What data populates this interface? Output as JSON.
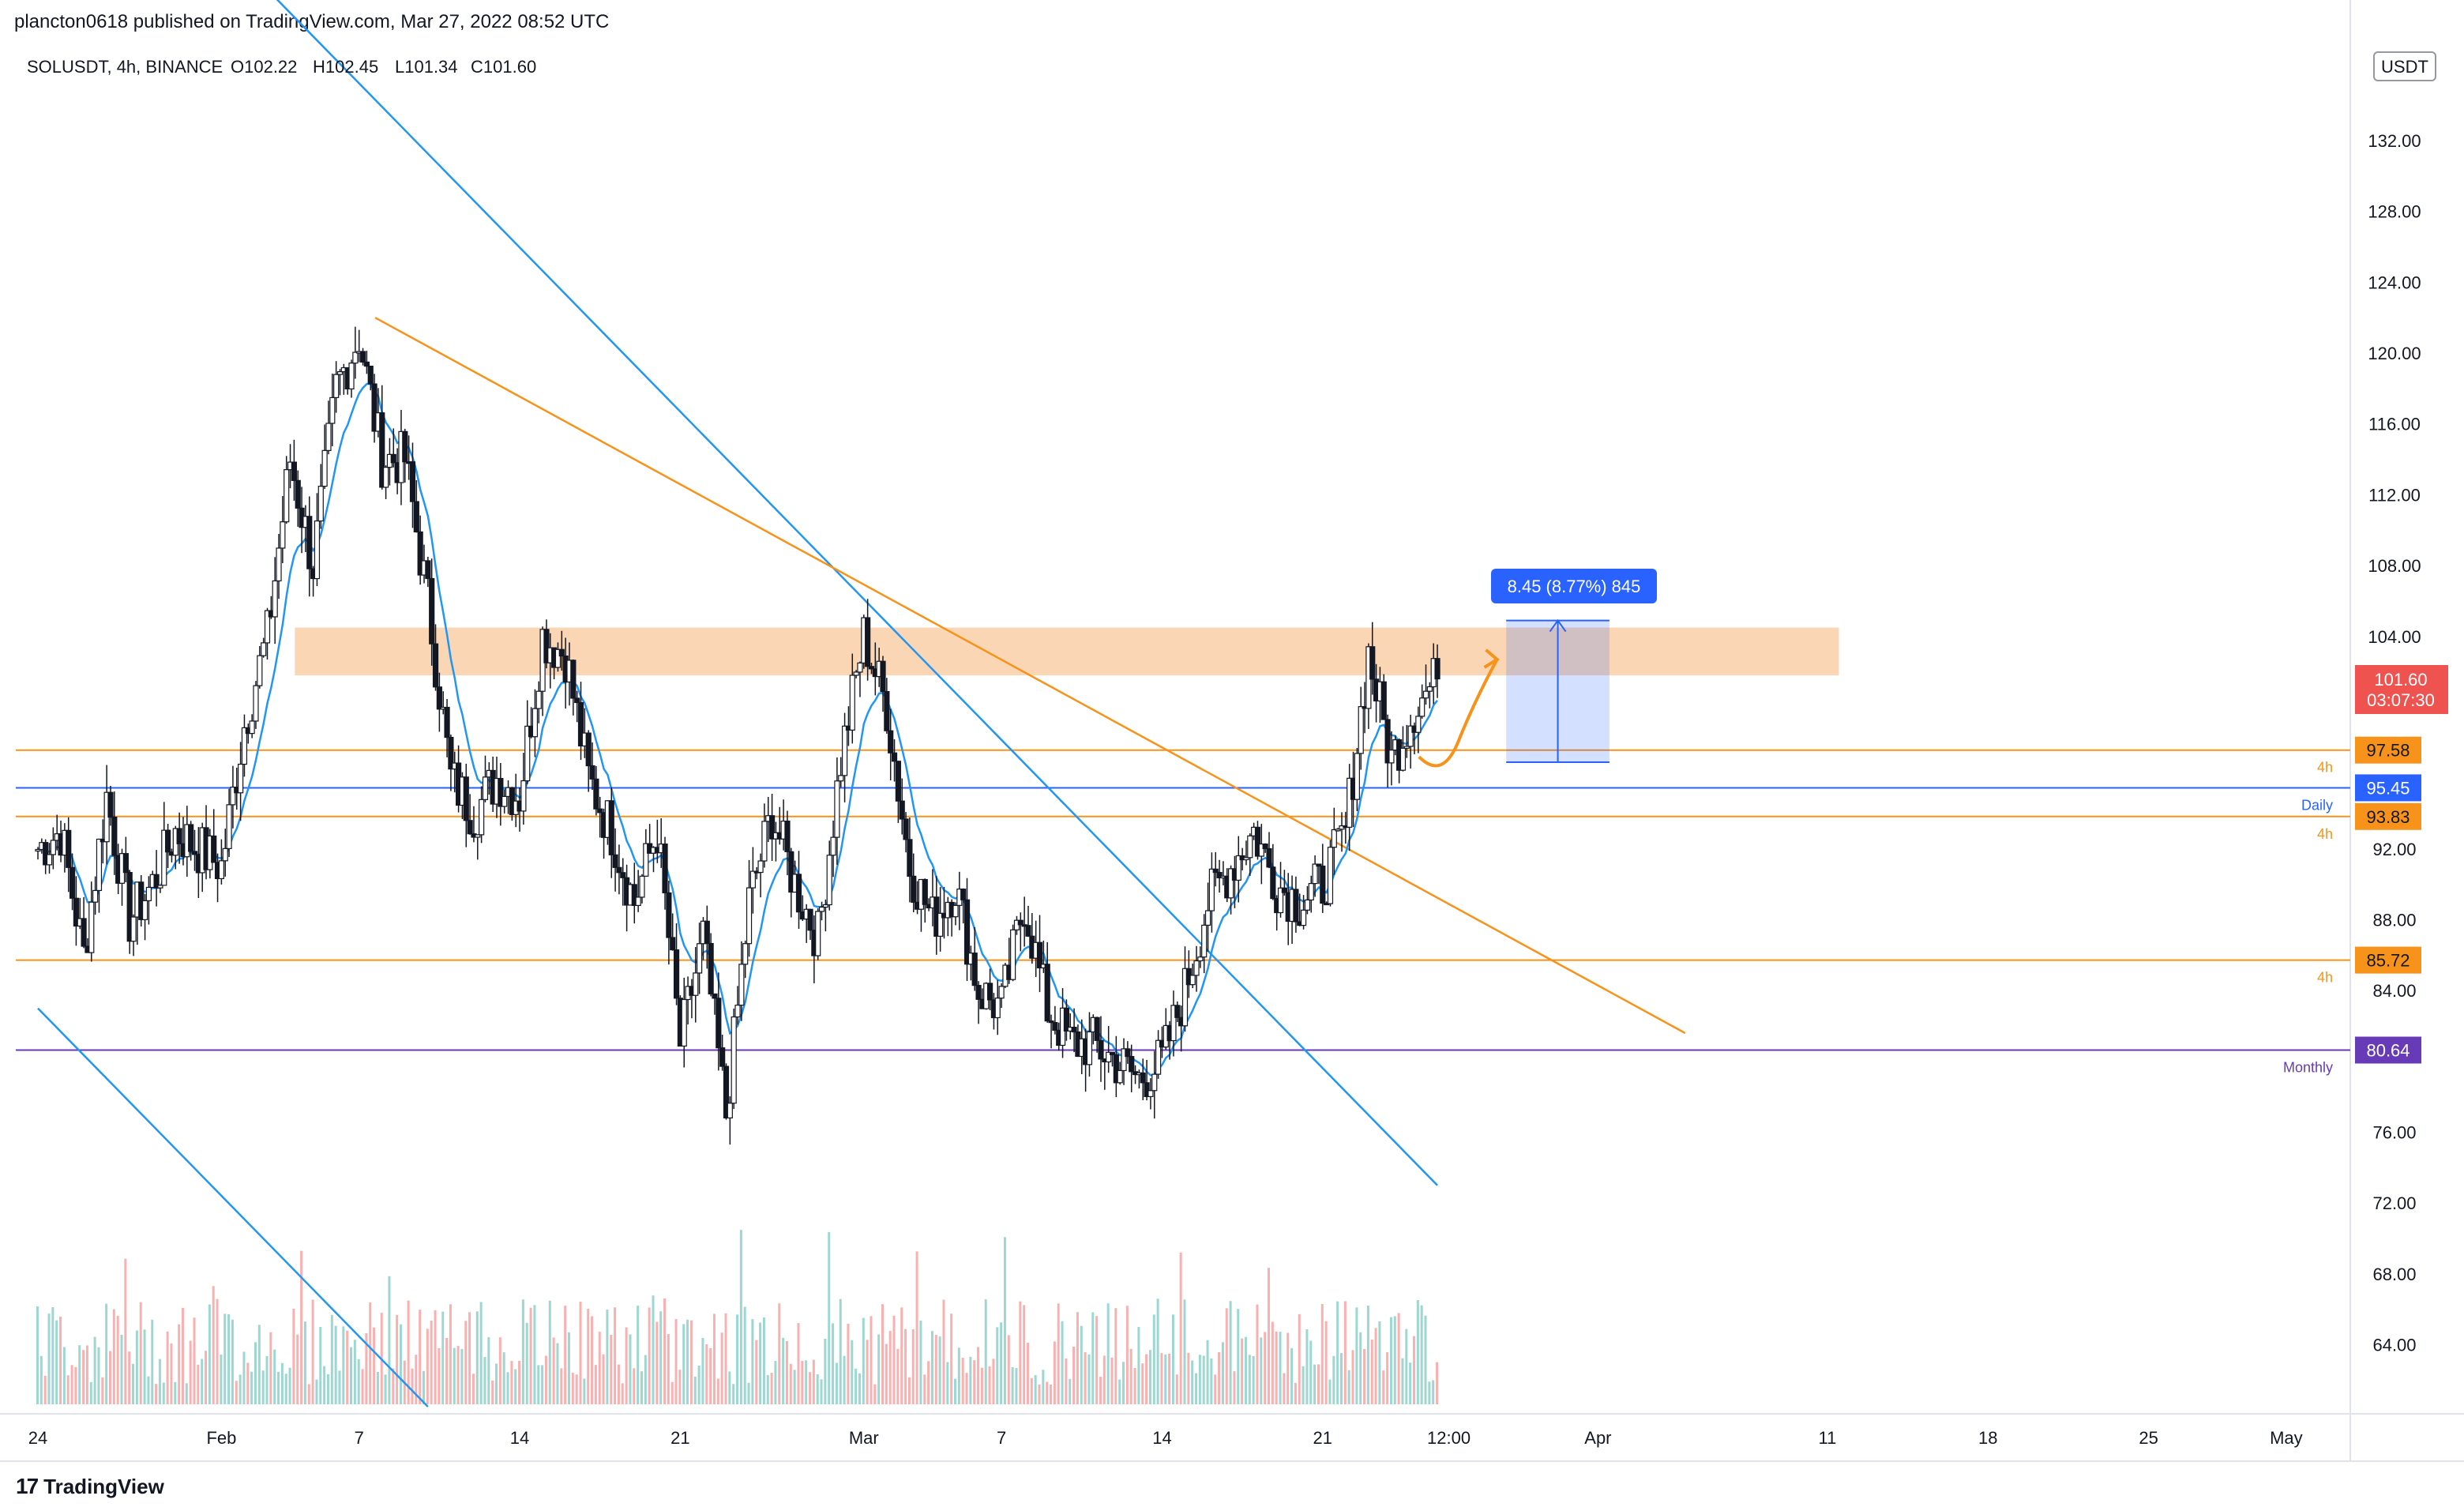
{
  "header": {
    "publisher": "plancton0618 published on TradingView.com, Mar 27, 2022 08:52 UTC"
  },
  "symbol_bar": {
    "symbol": "SOLUSDT, 4h, BINANCE",
    "open": "O102.22",
    "high": "H102.45",
    "low": "L101.34",
    "close": "C101.60"
  },
  "currency_badge": "USDT",
  "measure_label": "8.45 (8.77%) 845",
  "last_price": {
    "price": "101.60",
    "countdown": "03:07:30"
  },
  "footer": {
    "brand": "TradingView"
  },
  "colors": {
    "up_candle": "#ffffff",
    "down_candle": "#131722",
    "ma": "#2196f3",
    "trendline_blue": "#2196f3",
    "trendline_orange": "#f7931a",
    "level_orange": "#f7931a",
    "level_blue": "#2962ff",
    "level_purple": "#673ab7",
    "zone": "#f9c89b",
    "last_price": "#ef5350",
    "vol_up": "#26a69a",
    "vol_down": "#ef5350"
  },
  "chart_data": {
    "type": "candlestick",
    "symbol": "SOLUSDT",
    "timeframe": "4h",
    "exchange": "BINANCE",
    "y_ticks": [
      "132.00",
      "128.00",
      "124.00",
      "120.00",
      "116.00",
      "112.00",
      "108.00",
      "104.00",
      "92.00",
      "88.00",
      "84.00",
      "76.00",
      "72.00",
      "68.00",
      "64.00"
    ],
    "ylim": [
      61,
      136
    ],
    "x_ticks": [
      {
        "label": "24",
        "day": 0
      },
      {
        "label": "Feb",
        "day": 8
      },
      {
        "label": "7",
        "day": 14
      },
      {
        "label": "14",
        "day": 21
      },
      {
        "label": "21",
        "day": 28
      },
      {
        "label": "Mar",
        "day": 36
      },
      {
        "label": "7",
        "day": 42
      },
      {
        "label": "14",
        "day": 49
      },
      {
        "label": "21",
        "day": 56
      },
      {
        "label": "12:00",
        "day": 61.5
      },
      {
        "label": "Apr",
        "day": 68
      },
      {
        "label": "11",
        "day": 78
      },
      {
        "label": "18",
        "day": 85
      },
      {
        "label": "25",
        "day": 92
      },
      {
        "label": "May",
        "day": 98
      }
    ],
    "ohlc_keypoints": [
      [
        0,
        92
      ],
      [
        1,
        93
      ],
      [
        2,
        86
      ],
      [
        3,
        95
      ],
      [
        4,
        88
      ],
      [
        5,
        90
      ],
      [
        6,
        93
      ],
      [
        7,
        92
      ],
      [
        8,
        91
      ],
      [
        9,
        99
      ],
      [
        10,
        104
      ],
      [
        11,
        114
      ],
      [
        12,
        108
      ],
      [
        13,
        118
      ],
      [
        14,
        121
      ],
      [
        15,
        114
      ],
      [
        16,
        114
      ],
      [
        17,
        106
      ],
      [
        18,
        96
      ],
      [
        19,
        94
      ],
      [
        20,
        96
      ],
      [
        21,
        95
      ],
      [
        22,
        104
      ],
      [
        23,
        103
      ],
      [
        24,
        96
      ],
      [
        25,
        93
      ],
      [
        26,
        89
      ],
      [
        27,
        93
      ],
      [
        28,
        81
      ],
      [
        29,
        87
      ],
      [
        30,
        77
      ],
      [
        31,
        89
      ],
      [
        32,
        94
      ],
      [
        33,
        90
      ],
      [
        34,
        87
      ],
      [
        35,
        97
      ],
      [
        36,
        104
      ],
      [
        37,
        100
      ],
      [
        38,
        91
      ],
      [
        39,
        88
      ],
      [
        40,
        90
      ],
      [
        41,
        84
      ],
      [
        42,
        83
      ],
      [
        43,
        89
      ],
      [
        44,
        83
      ],
      [
        45,
        81
      ],
      [
        46,
        81
      ],
      [
        47,
        80
      ],
      [
        48,
        79
      ],
      [
        49,
        80
      ],
      [
        50,
        84
      ],
      [
        51,
        89
      ],
      [
        52,
        91
      ],
      [
        53,
        93
      ],
      [
        54,
        90
      ],
      [
        55,
        89
      ],
      [
        56,
        90
      ],
      [
        57,
        93
      ],
      [
        58,
        103
      ],
      [
        59,
        97
      ],
      [
        60,
        100
      ],
      [
        61,
        101.6
      ]
    ],
    "last": {
      "open": 102.22,
      "high": 102.45,
      "low": 101.34,
      "close": 101.6
    },
    "horizontal_levels": [
      {
        "price": 97.58,
        "label": "97.58",
        "tag": "4h",
        "color": "#f7931a"
      },
      {
        "price": 95.45,
        "label": "95.45",
        "tag": "Daily",
        "color": "#2962ff"
      },
      {
        "price": 93.83,
        "label": "93.83",
        "tag": "4h",
        "color": "#f7931a"
      },
      {
        "price": 85.72,
        "label": "85.72",
        "tag": "4h",
        "color": "#f7931a"
      },
      {
        "price": 80.64,
        "label": "80.64",
        "tag": "Monthly",
        "color": "#673ab7"
      }
    ],
    "resistance_zone": {
      "from_day": 11.2,
      "to_day": 78.5,
      "low": 101.8,
      "high": 104.5
    },
    "trendlines": [
      {
        "color": "#2196f3",
        "from": [
          10.4,
          140
        ],
        "to": [
          61.0,
          73
        ]
      },
      {
        "color": "#2196f3",
        "from": [
          0,
          83
        ],
        "to": [
          17.0,
          60.5
        ]
      },
      {
        "color": "#f7931a",
        "from": [
          14.7,
          122
        ],
        "to": [
          71.8,
          81.6
        ]
      }
    ],
    "projection": {
      "from": [
        60.2,
        97.2
      ],
      "to": [
        63.6,
        102.7
      ]
    },
    "measure": {
      "from_day": 64.0,
      "to_day": 68.5,
      "low": 96.9,
      "high": 104.9,
      "label": "8.45 (8.77%) 845"
    }
  }
}
